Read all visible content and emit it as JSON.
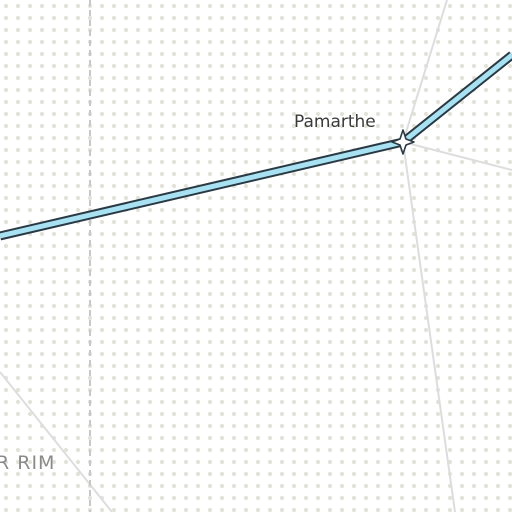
{
  "map": {
    "place_label": "Pamarthe",
    "region_label": "R RIM",
    "colors": {
      "background": "#ffffff",
      "dot_pattern": "#e2e2d8",
      "route_fill": "#a8e2f2",
      "route_casing": "#2a3a44",
      "minor_road": "#dddddd",
      "boundary": "#c8c8c8",
      "station_fill": "#ffffff",
      "station_stroke": "#2a3a44"
    },
    "icons": {
      "station": "star-station-icon"
    }
  }
}
